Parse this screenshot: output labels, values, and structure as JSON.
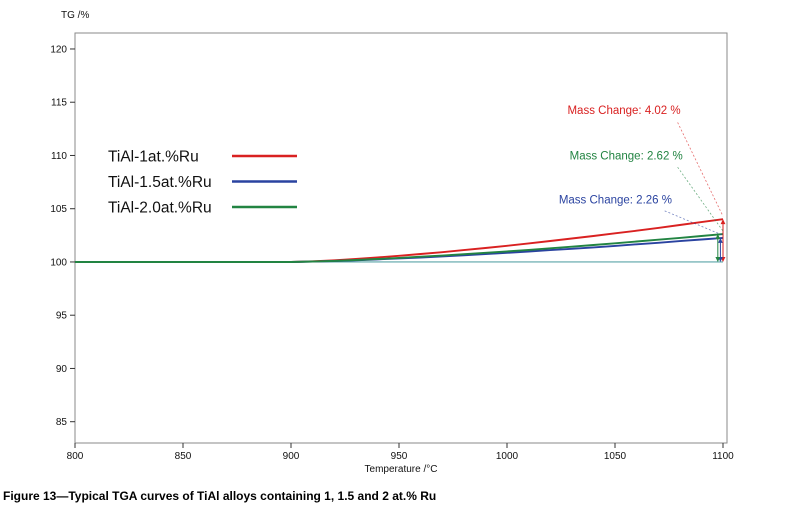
{
  "figure": {
    "caption": "Figure 13—Typical TGA curves of TiAl alloys containing 1, 1.5 and 2 at.% Ru"
  },
  "chart_data": {
    "type": "line",
    "title": "",
    "ylabel": "TG /%",
    "xlabel": "Temperature /°C",
    "xlim": [
      800,
      1100
    ],
    "ylim": [
      83,
      121.5
    ],
    "x_ticks": [
      800,
      850,
      900,
      950,
      1000,
      1050,
      1100
    ],
    "y_ticks": [
      85,
      90,
      95,
      100,
      105,
      110,
      115,
      120
    ],
    "grid": false,
    "legend_position": "upper-left-inside",
    "x": [
      800,
      810,
      820,
      830,
      840,
      850,
      860,
      870,
      880,
      890,
      900,
      910,
      920,
      930,
      940,
      950,
      960,
      970,
      980,
      990,
      1000,
      1010,
      1020,
      1030,
      1040,
      1050,
      1060,
      1070,
      1080,
      1090,
      1100
    ],
    "series": [
      {
        "name": "TiAl-1at.%Ru",
        "color": "#d92121",
        "mass_change_pct": 4.02,
        "values": [
          100.0,
          100.0,
          100.0,
          100.0,
          100.0,
          100.0,
          100.0,
          100.0,
          100.0,
          100.0,
          100.0,
          100.06,
          100.16,
          100.28,
          100.42,
          100.58,
          100.75,
          100.92,
          101.11,
          101.31,
          101.52,
          101.74,
          101.97,
          102.2,
          102.44,
          102.69,
          102.94,
          103.2,
          103.47,
          103.74,
          104.02
        ]
      },
      {
        "name": "TiAl-1.5at.%Ru",
        "color": "#2a43a0",
        "mass_change_pct": 2.26,
        "values": [
          100.0,
          100.0,
          100.0,
          100.0,
          100.0,
          100.0,
          100.0,
          100.0,
          100.0,
          100.0,
          100.0,
          100.03,
          100.09,
          100.16,
          100.24,
          100.33,
          100.42,
          100.52,
          100.63,
          100.74,
          100.86,
          100.98,
          101.11,
          101.24,
          101.37,
          101.51,
          101.66,
          101.8,
          101.96,
          102.11,
          102.26
        ]
      },
      {
        "name": "TiAl-2.0at.%Ru",
        "color": "#228442",
        "mass_change_pct": 2.62,
        "values": [
          100.0,
          100.0,
          100.0,
          100.0,
          100.0,
          100.0,
          100.0,
          100.0,
          100.0,
          100.0,
          100.0,
          100.04,
          100.1,
          100.18,
          100.28,
          100.38,
          100.49,
          100.6,
          100.73,
          100.86,
          100.99,
          101.13,
          101.28,
          101.43,
          101.59,
          101.75,
          101.92,
          102.09,
          102.26,
          102.44,
          102.62
        ]
      }
    ],
    "baseline": {
      "value": 100,
      "color": "#5ba4a8"
    },
    "annotations": [
      {
        "text": "Mass Change: 4.02 %",
        "color": "#d92121",
        "x": 1028,
        "y": 113.9,
        "leader": [
          [
            1079,
            113.1
          ],
          [
            1100,
            104.3
          ]
        ]
      },
      {
        "text": "Mass Change: 2.62 %",
        "color": "#228442",
        "x": 1029,
        "y": 109.6,
        "leader": [
          [
            1079,
            108.9
          ],
          [
            1100,
            102.9
          ]
        ]
      },
      {
        "text": "Mass Change: 2.26 %",
        "color": "#2a43a0",
        "x": 1024,
        "y": 105.5,
        "leader": [
          [
            1073,
            104.8
          ],
          [
            1100,
            102.5
          ]
        ]
      }
    ]
  }
}
